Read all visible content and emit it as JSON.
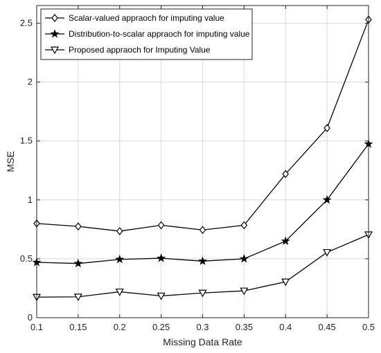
{
  "chart_data": {
    "type": "line",
    "title": "",
    "xlabel": "Missing Data Rate",
    "ylabel": "MSE",
    "xlim": [
      0.1,
      0.5
    ],
    "ylim": [
      0,
      2.65
    ],
    "xticks": [
      "0.1",
      "0.15",
      "0.2",
      "0.25",
      "0.3",
      "0.35",
      "0.4",
      "0.45",
      "0.5"
    ],
    "yticks": [
      "0",
      "0.5",
      "1",
      "1.5",
      "2",
      "2.5"
    ],
    "grid": true,
    "legend_position": "top-left",
    "x": [
      0.1,
      0.15,
      0.2,
      0.25,
      0.3,
      0.35,
      0.4,
      0.45,
      0.5
    ],
    "series": [
      {
        "name": "Scalar-valued appraoch for imputing value",
        "marker": "diamond",
        "color": "#000000",
        "values": [
          0.8,
          0.775,
          0.735,
          0.785,
          0.745,
          0.785,
          1.22,
          1.61,
          2.53
        ]
      },
      {
        "name": "Distribution-to-scalar appraoch for imputing value",
        "marker": "star",
        "color": "#000000",
        "values": [
          0.47,
          0.46,
          0.495,
          0.505,
          0.48,
          0.5,
          0.65,
          1.0,
          1.475
        ]
      },
      {
        "name": "Proposed  appraoch for Imputing Value",
        "marker": "triangle-down",
        "color": "#000000",
        "values": [
          0.175,
          0.177,
          0.22,
          0.185,
          0.21,
          0.228,
          0.305,
          0.555,
          0.705
        ]
      }
    ]
  }
}
